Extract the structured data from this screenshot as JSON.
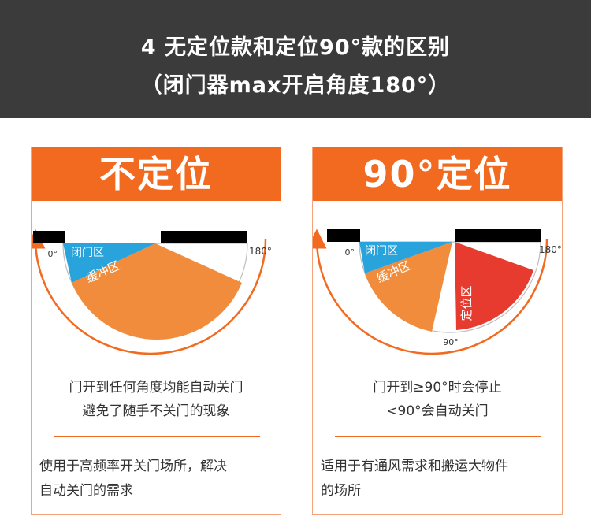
{
  "header": {
    "line1": "4  无定位款和定位90°款的区别",
    "line2": "（闭门器max开启角度180°）"
  },
  "cards": [
    {
      "title": "不定位",
      "labels": {
        "angle_start": "0°",
        "angle_end": "180°",
        "closing_zone": "闭门区",
        "buffer_zone": "缓冲区"
      },
      "desc_line1": "门开到任何角度均能自动关门",
      "desc_line2": "避免了随手不关门的现象",
      "use_line1": "使用于高频率开关门场所，解决",
      "use_line2": "自动关门的需求"
    },
    {
      "title": "90°定位",
      "labels": {
        "angle_start": "0°",
        "angle_end": "180°",
        "angle_mid": "90°",
        "closing_zone": "闭门区",
        "buffer_zone": "缓冲区",
        "hold_zone": "定位区"
      },
      "desc_line1": "门开到≥90°时会停止",
      "desc_line2": "<90°会自动关门",
      "use_line1": "适用于有通风需求和搬运大物件",
      "use_line2": "的场所"
    }
  ],
  "colors": {
    "banner_bg": "#3b3b3b",
    "accent": "#f26a1f",
    "closing_zone": "#29a3dc",
    "buffer_zone": "#f08c3c",
    "hold_zone": "#e63b2e",
    "wall": "#000000"
  }
}
